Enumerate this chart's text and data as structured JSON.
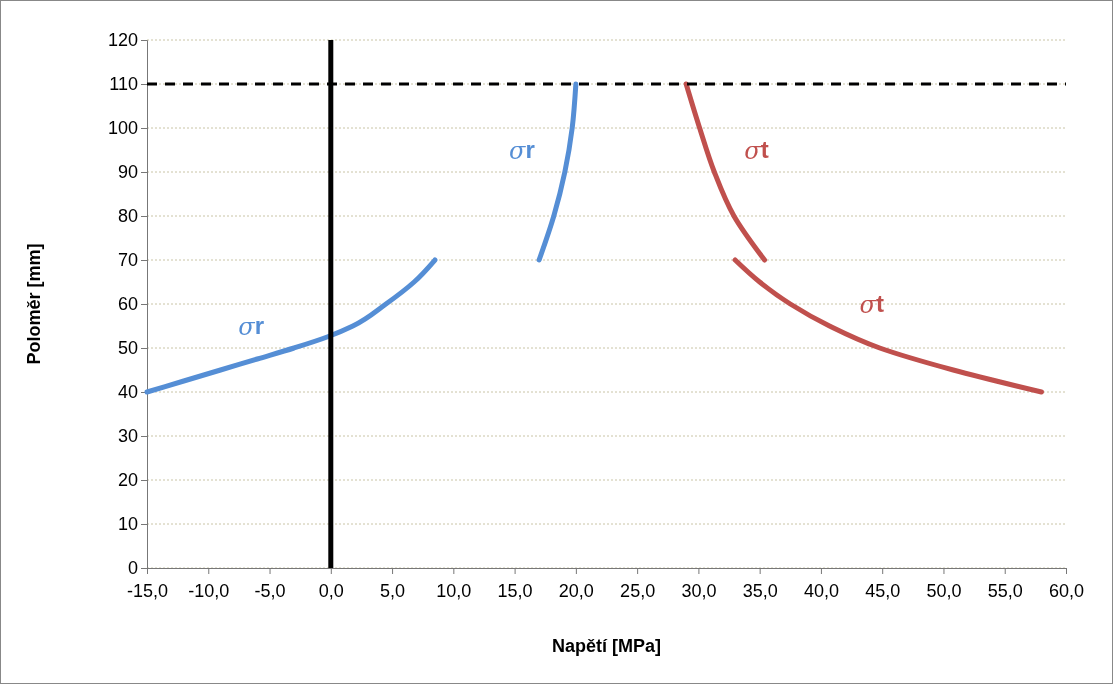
{
  "chart_data": {
    "type": "line",
    "xlabel": "Napětí [MPa]",
    "ylabel": "Poloměr [mm]",
    "xlim": [
      -15,
      60
    ],
    "xticks": [
      {
        "value": -15,
        "label": "-15,0"
      },
      {
        "value": -10,
        "label": "-10,0"
      },
      {
        "value": -5,
        "label": "-5,0"
      },
      {
        "value": 0,
        "label": "0,0"
      },
      {
        "value": 5,
        "label": "5,0"
      },
      {
        "value": 10,
        "label": "10,0"
      },
      {
        "value": 15,
        "label": "15,0"
      },
      {
        "value": 20,
        "label": "20,0"
      },
      {
        "value": 25,
        "label": "25,0"
      },
      {
        "value": 30,
        "label": "30,0"
      },
      {
        "value": 35,
        "label": "35,0"
      },
      {
        "value": 40,
        "label": "40,0"
      },
      {
        "value": 45,
        "label": "45,0"
      },
      {
        "value": 50,
        "label": "50,0"
      },
      {
        "value": 55,
        "label": "55,0"
      },
      {
        "value": 60,
        "label": "60,0"
      }
    ],
    "ylim": [
      0,
      120
    ],
    "yticks": [
      0,
      10,
      20,
      30,
      40,
      50,
      60,
      70,
      80,
      90,
      100,
      110,
      120
    ],
    "grid": "y",
    "marker": "none",
    "line_style": "solid",
    "series": [
      {
        "name": "σr",
        "color": "#558ed5",
        "x": [
          -15,
          -12,
          -9,
          -6,
          -3,
          -0.3,
          1.8,
          4.5,
          6.8,
          8.5
        ],
        "values": [
          40,
          42.5,
          45,
          47.5,
          50,
          52.5,
          55,
          60,
          65,
          70
        ]
      },
      {
        "name": "σr",
        "color": "#558ed5",
        "x": [
          17,
          18.2,
          19.1,
          19.7,
          20
        ],
        "values": [
          70,
          80,
          90,
          100,
          110
        ]
      },
      {
        "name": "σt",
        "color": "#c0504d",
        "x": [
          29,
          30.1,
          31.3,
          32.9,
          35.4
        ],
        "values": [
          110,
          100,
          90,
          80,
          70
        ]
      },
      {
        "name": "σt",
        "color": "#c0504d",
        "x": [
          33,
          35,
          37.5,
          40.7,
          44.8,
          50.8,
          58
        ],
        "values": [
          70,
          65,
          60,
          55,
          50,
          45,
          40
        ]
      }
    ],
    "ref_lines": [
      {
        "axis": "x",
        "value": 0,
        "color": "#000000",
        "line_style": "solid"
      },
      {
        "axis": "y",
        "value": 110,
        "color": "#000000",
        "line_style": "dashed"
      }
    ]
  }
}
